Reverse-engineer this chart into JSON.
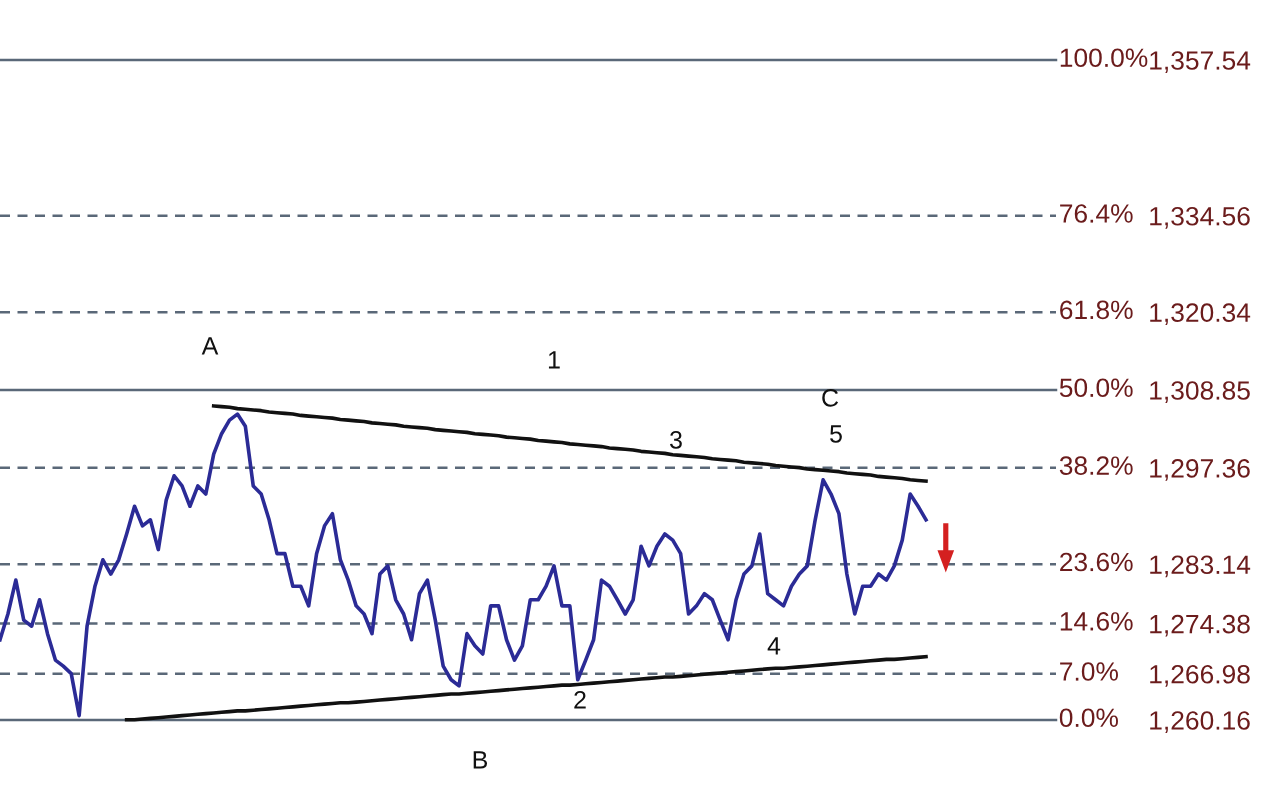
{
  "chart_data": {
    "type": "line",
    "categories": [
      null,
      null,
      null,
      null,
      null,
      null,
      null,
      null,
      null,
      null,
      null,
      null,
      null,
      null,
      null,
      null,
      null,
      null,
      null,
      null,
      null,
      null,
      null,
      null,
      null,
      null,
      null,
      null,
      null,
      null,
      null,
      null,
      null,
      null,
      null,
      null,
      null,
      null,
      null,
      null,
      null,
      null,
      null,
      null,
      null,
      null,
      null,
      null,
      null,
      null,
      null,
      null,
      null,
      null,
      null,
      null,
      null,
      null,
      null,
      null,
      null,
      null,
      null,
      null,
      null,
      null,
      null,
      null,
      null,
      null,
      null,
      null,
      null,
      null,
      null,
      null,
      null,
      null,
      null,
      null,
      null,
      null,
      null,
      null,
      null,
      null,
      null,
      null,
      null,
      null,
      null,
      null,
      null,
      null,
      null,
      null,
      null,
      null,
      null,
      null,
      null,
      null,
      null,
      null,
      null,
      null,
      null,
      null,
      null,
      null,
      null,
      null,
      null,
      null,
      null,
      null,
      null,
      null
    ],
    "ylim": [
      1260.16,
      1357.54
    ],
    "yticks": [
      {
        "value": 1357.54,
        "label": "1,357.54"
      },
      {
        "value": 1334.56,
        "label": "1,334.56"
      },
      {
        "value": 1320.34,
        "label": "1,320.34"
      },
      {
        "value": 1308.85,
        "label": "1,308.85"
      },
      {
        "value": 1297.36,
        "label": "1,297.36"
      },
      {
        "value": 1283.14,
        "label": "1,283.14"
      },
      {
        "value": 1274.38,
        "label": "1,274.38"
      },
      {
        "value": 1266.98,
        "label": "1,266.98"
      },
      {
        "value": 1260.16,
        "label": "1,260.16"
      }
    ],
    "tick_labels": "y",
    "ref_lines": [
      {
        "axis": "y",
        "value": 1357.54,
        "color": "#5a6878",
        "line_style": "solid"
      },
      {
        "axis": "y",
        "value": 1334.56,
        "color": "#5a6878",
        "line_style": "dashed"
      },
      {
        "axis": "y",
        "value": 1320.34,
        "color": "#5a6878",
        "line_style": "dashed"
      },
      {
        "axis": "y",
        "value": 1308.85,
        "color": "#5a6878",
        "line_style": "solid"
      },
      {
        "axis": "y",
        "value": 1297.36,
        "color": "#5a6878",
        "line_style": "dashed"
      },
      {
        "axis": "y",
        "value": 1283.14,
        "color": "#5a6878",
        "line_style": "dashed"
      },
      {
        "axis": "y",
        "value": 1274.38,
        "color": "#5a6878",
        "line_style": "dashed"
      },
      {
        "axis": "y",
        "value": 1266.98,
        "color": "#5a6878",
        "line_style": "dashed"
      },
      {
        "axis": "y",
        "value": 1260.16,
        "color": "#5a6878",
        "line_style": "solid"
      }
    ],
    "series": [
      {
        "color": "#2b2b96",
        "values": [
          1272.0,
          1275.8,
          1280.8,
          1274.9,
          1274.0,
          1277.9,
          1272.9,
          1269.0,
          1268.1,
          1267.0,
          1260.8,
          1274.0,
          1279.9,
          1283.8,
          1281.7,
          1283.8,
          1287.6,
          1291.7,
          1288.8,
          1289.7,
          1285.3,
          1292.6,
          1296.2,
          1294.7,
          1291.7,
          1294.7,
          1293.5,
          1299.4,
          1302.4,
          1304.4,
          1305.3,
          1303.5,
          1294.7,
          1293.5,
          1289.7,
          1284.7,
          1284.7,
          1279.9,
          1279.9,
          1277.0,
          1284.7,
          1288.8,
          1290.6,
          1283.8,
          1280.8,
          1277.0,
          1275.8,
          1272.9,
          1281.7,
          1282.9,
          1277.9,
          1275.8,
          1272.0,
          1278.8,
          1280.8,
          1274.9,
          1268.1,
          1266.1,
          1265.2,
          1272.9,
          1271.1,
          1269.9,
          1277.0,
          1277.0,
          1272.0,
          1269.0,
          1271.1,
          1277.9,
          1277.9,
          1279.9,
          1282.9,
          1277.0,
          1277.0,
          1266.1,
          1269.0,
          1272.0,
          1280.8,
          1279.9,
          1277.9,
          1275.8,
          1277.9,
          1285.8,
          1282.9,
          1285.8,
          1287.6,
          1286.7,
          1284.7,
          1275.8,
          1277.0,
          1278.8,
          1277.9,
          1274.9,
          1272.0,
          1277.9,
          1281.7,
          1282.9,
          1287.6,
          1278.8,
          1277.9,
          1277.0,
          1279.9,
          1281.7,
          1282.9,
          1289.7,
          1295.6,
          1293.5,
          1290.6,
          1281.7,
          1275.8,
          1279.9,
          1279.9,
          1281.7,
          1280.8,
          1282.9,
          1286.7,
          1293.5,
          1291.7,
          1289.7
        ]
      },
      {
        "color": "#111111",
        "values": [
          null,
          null,
          null,
          null,
          null,
          null,
          null,
          null,
          null,
          null,
          null,
          null,
          null,
          null,
          null,
          null,
          null,
          null,
          null,
          null,
          null,
          null,
          null,
          null,
          null,
          null,
          null,
          1306.5,
          1306.4,
          1306.3,
          1306.1,
          1306.0,
          1305.9,
          1305.8,
          1305.6,
          1305.5,
          1305.4,
          1305.3,
          1305.1,
          1305.0,
          1304.9,
          1304.8,
          1304.7,
          1304.5,
          1304.4,
          1304.3,
          1304.2,
          1304.0,
          1303.9,
          1303.8,
          1303.7,
          1303.5,
          1303.4,
          1303.3,
          1303.2,
          1303.0,
          1302.9,
          1302.8,
          1302.7,
          1302.6,
          1302.4,
          1302.3,
          1302.2,
          1302.1,
          1301.9,
          1301.8,
          1301.7,
          1301.6,
          1301.4,
          1301.3,
          1301.2,
          1301.1,
          1300.9,
          1300.8,
          1300.7,
          1300.6,
          1300.5,
          1300.3,
          1300.2,
          1300.1,
          1300.0,
          1299.8,
          1299.7,
          1299.6,
          1299.5,
          1299.3,
          1299.2,
          1299.1,
          1299.0,
          1298.9,
          1298.7,
          1298.6,
          1298.5,
          1298.4,
          1298.2,
          1298.1,
          1298.0,
          1297.9,
          1297.7,
          1297.6,
          1297.5,
          1297.4,
          1297.2,
          1297.1,
          1297.0,
          1296.9,
          1296.8,
          1296.6,
          1296.5,
          1296.4,
          1296.3,
          1296.1,
          1296.0,
          1295.9,
          1295.8,
          1295.6,
          1295.5,
          1295.4
        ]
      },
      {
        "color": "#111111",
        "values": [
          null,
          null,
          null,
          null,
          null,
          null,
          null,
          null,
          null,
          null,
          null,
          null,
          null,
          null,
          null,
          null,
          1260.2,
          1260.2,
          1260.3,
          1260.4,
          1260.5,
          1260.6,
          1260.7,
          1260.8,
          1260.9,
          1261.0,
          1261.1,
          1261.2,
          1261.3,
          1261.4,
          1261.5,
          1261.5,
          1261.6,
          1261.7,
          1261.8,
          1261.9,
          1262.0,
          1262.1,
          1262.2,
          1262.3,
          1262.4,
          1262.5,
          1262.6,
          1262.7,
          1262.7,
          1262.8,
          1262.9,
          1263.0,
          1263.1,
          1263.2,
          1263.3,
          1263.4,
          1263.5,
          1263.6,
          1263.7,
          1263.8,
          1263.9,
          1264.0,
          1264.0,
          1264.1,
          1264.2,
          1264.3,
          1264.4,
          1264.5,
          1264.6,
          1264.7,
          1264.8,
          1264.9,
          1265.0,
          1265.1,
          1265.2,
          1265.3,
          1265.3,
          1265.4,
          1265.5,
          1265.6,
          1265.7,
          1265.8,
          1265.9,
          1266.0,
          1266.1,
          1266.2,
          1266.3,
          1266.4,
          1266.5,
          1266.5,
          1266.6,
          1266.7,
          1266.8,
          1266.9,
          1267.0,
          1267.1,
          1267.2,
          1267.3,
          1267.4,
          1267.5,
          1267.6,
          1267.7,
          1267.8,
          1267.8,
          1267.9,
          1268.0,
          1268.1,
          1268.2,
          1268.3,
          1268.4,
          1268.5,
          1268.6,
          1268.7,
          1268.8,
          1268.9,
          1269.0,
          1269.1,
          1269.1,
          1269.2,
          1269.3,
          1269.4,
          1269.5
        ]
      }
    ],
    "annotations": [
      "100.0%",
      "76.4%",
      "61.8%",
      "50.0%",
      "38.2%",
      "23.6%",
      "14.6%",
      "7.0%",
      "0.0%",
      "A",
      "B",
      "C",
      "1",
      "2",
      "3",
      "4",
      "5"
    ]
  }
}
